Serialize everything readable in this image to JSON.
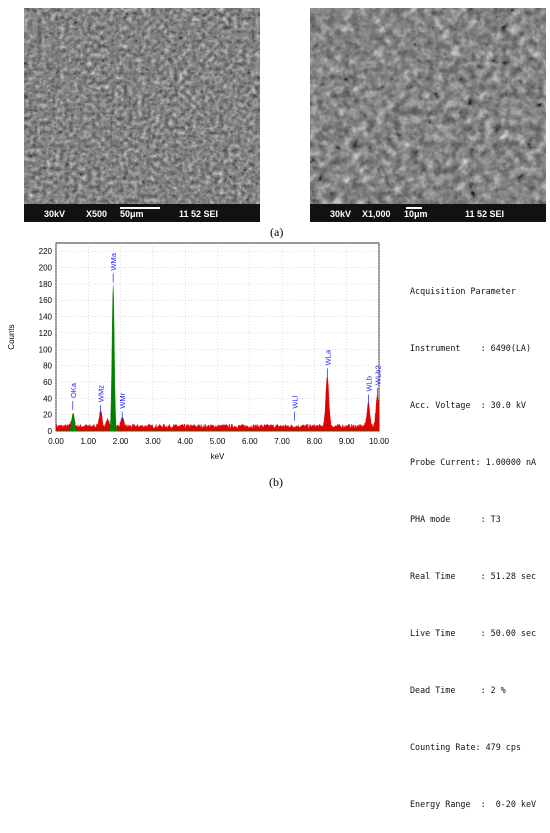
{
  "figure": {
    "caption_a": "(a)",
    "caption_b": "(b)"
  },
  "sem_images": [
    {
      "voltage": "30kV",
      "magnification": "X500",
      "scale_bar": "50μm",
      "info": "11 52 SEI"
    },
    {
      "voltage": "30kV",
      "magnification": "X1,000",
      "scale_bar": "10μm",
      "info": "11 52 SEI"
    }
  ],
  "acquisition": {
    "title": "Acquisition Parameter",
    "rows": [
      "Instrument    : 6490(LA)",
      "Acc. Voltage  : 30.0 kV",
      "Probe Current: 1.00000 nA",
      "PHA mode      : T3",
      "Real Time     : 51.28 sec",
      "Live Time     : 50.00 sec",
      "Dead Time     : 2 %",
      "Counting Rate: 479 cps",
      "Energy Range  :  0-20 keV"
    ]
  },
  "chart_data": {
    "type": "area",
    "title": "",
    "xlabel": "keV",
    "ylabel": "Counts",
    "xlim": [
      0,
      10
    ],
    "ylim": [
      0,
      230
    ],
    "xticks": [
      "0.00",
      "1.00",
      "2.00",
      "3.00",
      "4.00",
      "5.00",
      "6.00",
      "7.00",
      "8.00",
      "9.00",
      "10.00"
    ],
    "yticks": [
      "0",
      "20",
      "40",
      "60",
      "80",
      "100",
      "120",
      "140",
      "160",
      "180",
      "200",
      "220"
    ],
    "grid": true,
    "background_level": 5,
    "series": [
      {
        "color": "#e00000",
        "peaks": [
          {
            "x": 0.52,
            "y": 12
          },
          {
            "x": 1.38,
            "y": 17
          },
          {
            "x": 1.6,
            "y": 8
          },
          {
            "x": 2.05,
            "y": 9
          },
          {
            "x": 8.4,
            "y": 62
          },
          {
            "x": 9.67,
            "y": 28
          },
          {
            "x": 9.95,
            "y": 36
          }
        ]
      },
      {
        "color": "#008000",
        "peaks": [
          {
            "x": 0.53,
            "y": 22
          },
          {
            "x": 1.77,
            "y": 178
          }
        ]
      }
    ],
    "annotations": [
      {
        "label": "OKa",
        "x": 0.52,
        "y": 22
      },
      {
        "label": "WMz",
        "x": 1.38,
        "y": 17
      },
      {
        "label": "WMa",
        "x": 1.77,
        "y": 178
      },
      {
        "label": "WMr",
        "x": 2.05,
        "y": 9
      },
      {
        "label": "WLl",
        "x": 7.38,
        "y": 9
      },
      {
        "label": "WLa",
        "x": 8.4,
        "y": 62
      },
      {
        "label": "WLb",
        "x": 9.67,
        "y": 30
      },
      {
        "label": "WLb2",
        "x": 9.95,
        "y": 38
      }
    ]
  },
  "colors": {
    "plot_background": "#ffffff",
    "annotation": "#1a1aff",
    "grid": "#bbbbbb"
  }
}
